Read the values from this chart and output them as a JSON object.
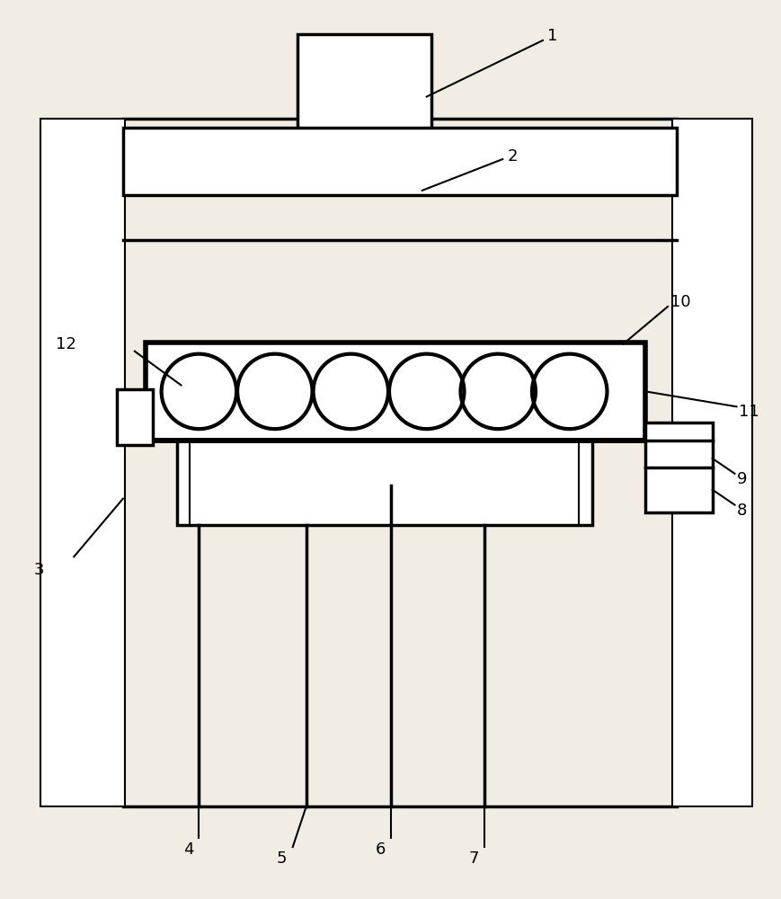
{
  "bg_color": "#f2ede4",
  "line_color": "#000000",
  "lw_thin": 1.5,
  "lw_med": 2.5,
  "lw_thick": 4.0,
  "font_size": 13
}
